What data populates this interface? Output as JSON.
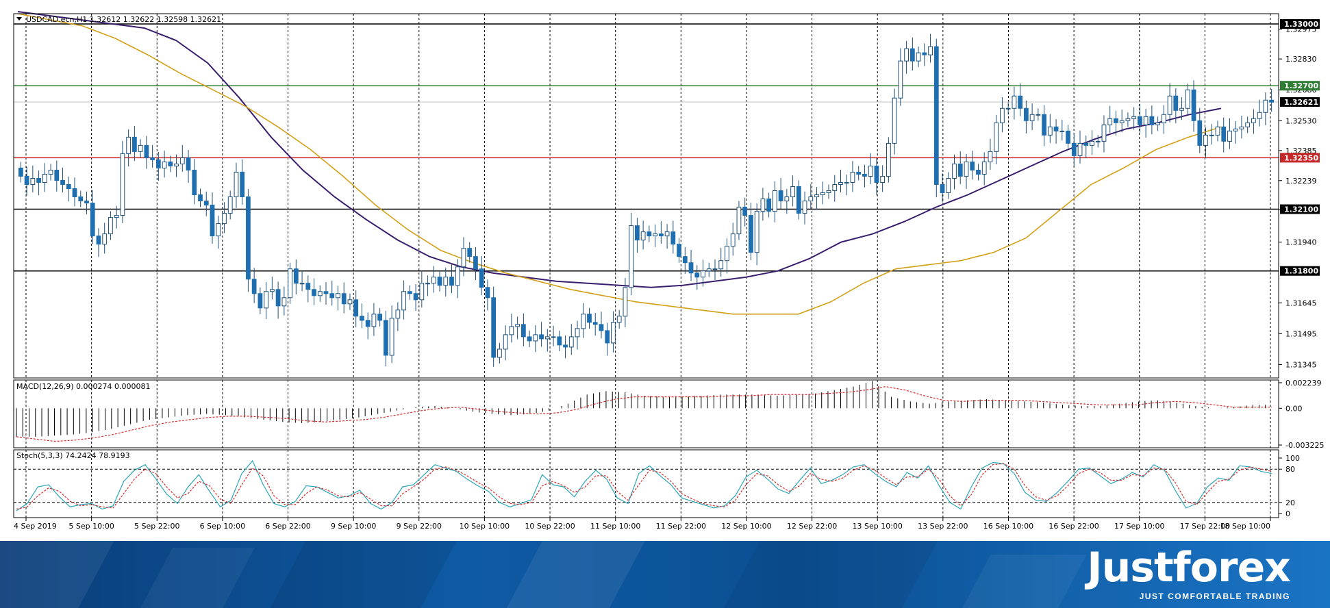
{
  "window": {
    "symbol_header": "USDCAD.ecn,H1  1.32612 1.32622 1.32598 1.32621"
  },
  "colors": {
    "bull_candle": "#1f6fb0",
    "bear_candle": "#1f6fb0",
    "ma_fast": "#d4a017",
    "ma_slow": "#3a1e6e",
    "level_black": "#000000",
    "level_green": "#2e7d32",
    "level_red": "#c62828",
    "bid_line": "#c0c0c0",
    "grid": "#000000",
    "brand_bg": "#0e5aa4"
  },
  "chart_data": [
    {
      "type": "candlestick",
      "title": "USDCAD.ecn,H1",
      "last_quote": {
        "open": 1.32612,
        "high": 1.32622,
        "low": 1.32598,
        "close": 1.32621
      },
      "x_tick_labels": [
        "4 Sep 2019",
        "5 Sep 10:00",
        "5 Sep 22:00",
        "6 Sep 10:00",
        "6 Sep 22:00",
        "9 Sep 10:00",
        "9 Sep 22:00",
        "10 Sep 10:00",
        "10 Sep 22:00",
        "11 Sep 10:00",
        "11 Sep 22:00",
        "12 Sep 10:00",
        "12 Sep 22:00",
        "13 Sep 10:00",
        "13 Sep 22:00",
        "16 Sep 10:00",
        "16 Sep 22:00",
        "17 Sep 10:00",
        "17 Sep 22:00",
        "18 Sep 10:00"
      ],
      "y_tick_labels": [
        "1.32975",
        "1.32830",
        "1.32680",
        "1.32530",
        "1.32385",
        "1.32239",
        "1.32100",
        "1.31940",
        "1.31645",
        "1.31495",
        "1.31345"
      ],
      "ylim": [
        1.3128,
        1.3305
      ],
      "grid": true,
      "price_levels": [
        {
          "label": "1.33000",
          "value": 1.33,
          "kind": "black"
        },
        {
          "label": "1.32700",
          "value": 1.327,
          "kind": "green"
        },
        {
          "label": "1.32621",
          "value": 1.32621,
          "kind": "bid"
        },
        {
          "label": "1.32350",
          "value": 1.3235,
          "kind": "red"
        },
        {
          "label": "1.32100",
          "value": 1.321,
          "kind": "black"
        },
        {
          "label": "1.31800",
          "value": 1.318,
          "kind": "black"
        }
      ],
      "close_path": [
        1.3226,
        1.3222,
        1.3225,
        1.3223,
        1.3227,
        1.3229,
        1.3224,
        1.3222,
        1.322,
        1.3216,
        1.3214,
        1.3213,
        1.3197,
        1.3193,
        1.3198,
        1.3206,
        1.3207,
        1.3237,
        1.3245,
        1.3238,
        1.3241,
        1.3235,
        1.3234,
        1.323,
        1.3233,
        1.3231,
        1.3232,
        1.3235,
        1.3229,
        1.3217,
        1.3214,
        1.3212,
        1.3197,
        1.3203,
        1.3208,
        1.3216,
        1.3228,
        1.3216,
        1.3176,
        1.3169,
        1.3162,
        1.317,
        1.3171,
        1.3163,
        1.3167,
        1.3181,
        1.3174,
        1.3174,
        1.3171,
        1.3168,
        1.317,
        1.3169,
        1.3167,
        1.3169,
        1.3164,
        1.3166,
        1.3158,
        1.3156,
        1.3153,
        1.3159,
        1.3156,
        1.3139,
        1.3157,
        1.3161,
        1.317,
        1.3169,
        1.3166,
        1.3174,
        1.3174,
        1.3177,
        1.3173,
        1.3177,
        1.3173,
        1.3182,
        1.3191,
        1.3187,
        1.3181,
        1.3172,
        1.3167,
        1.3138,
        1.3142,
        1.3149,
        1.3153,
        1.3154,
        1.3148,
        1.3146,
        1.3149,
        1.3147,
        1.3148,
        1.3148,
        1.3144,
        1.3143,
        1.3148,
        1.3152,
        1.3159,
        1.3155,
        1.3154,
        1.3151,
        1.3145,
        1.3155,
        1.3158,
        1.3172,
        1.3202,
        1.3195,
        1.3199,
        1.3197,
        1.3198,
        1.3197,
        1.3199,
        1.3193,
        1.3187,
        1.3184,
        1.3179,
        1.3177,
        1.318,
        1.3181,
        1.3181,
        1.3185,
        1.3192,
        1.3198,
        1.3211,
        1.3207,
        1.3189,
        1.3209,
        1.3215,
        1.3209,
        1.3219,
        1.3214,
        1.3216,
        1.3221,
        1.3208,
        1.3214,
        1.3216,
        1.3217,
        1.3218,
        1.3219,
        1.3222,
        1.3223,
        1.3223,
        1.3228,
        1.3227,
        1.3226,
        1.3231,
        1.3223,
        1.3226,
        1.3242,
        1.3264,
        1.3282,
        1.3288,
        1.3282,
        1.3286,
        1.3285,
        1.3289,
        1.3222,
        1.3218,
        1.3225,
        1.3232,
        1.3226,
        1.3233,
        1.3229,
        1.3227,
        1.3233,
        1.3238,
        1.3252,
        1.3259,
        1.3259,
        1.3265,
        1.3259,
        1.3253,
        1.3256,
        1.3256,
        1.3246,
        1.325,
        1.3248,
        1.3248,
        1.3242,
        1.3236,
        1.3242,
        1.3241,
        1.3243,
        1.3243,
        1.3251,
        1.3254,
        1.3252,
        1.3253,
        1.3254,
        1.3255,
        1.3251,
        1.3255,
        1.3251,
        1.3252,
        1.3256,
        1.3265,
        1.3258,
        1.3259,
        1.3268,
        1.3253,
        1.3241,
        1.3246,
        1.3246,
        1.325,
        1.3243,
        1.3248,
        1.3249,
        1.325,
        1.3252,
        1.3254,
        1.3257,
        1.3263,
        1.3262
      ],
      "ma_fast_path": [
        1.3305,
        1.3302,
        1.3299,
        1.3293,
        1.3285,
        1.3276,
        1.3268,
        1.326,
        1.325,
        1.3239,
        1.3226,
        1.3212,
        1.32,
        1.319,
        1.3184,
        1.3179,
        1.3175,
        1.3171,
        1.3168,
        1.3165,
        1.3163,
        1.3161,
        1.3159,
        1.3159,
        1.3159,
        1.3165,
        1.3174,
        1.3181,
        1.3183,
        1.3185,
        1.3189,
        1.3196,
        1.3209,
        1.3222,
        1.323,
        1.3239,
        1.3245,
        1.325
      ],
      "ma_slow_path": [
        1.3306,
        1.3304,
        1.3302,
        1.33,
        1.3298,
        1.3292,
        1.3281,
        1.3264,
        1.3245,
        1.3229,
        1.3216,
        1.3205,
        1.3195,
        1.3187,
        1.3182,
        1.3179,
        1.3177,
        1.3175,
        1.3174,
        1.3173,
        1.3172,
        1.3173,
        1.3175,
        1.3177,
        1.318,
        1.3186,
        1.3194,
        1.3198,
        1.3204,
        1.3211,
        1.3217,
        1.3224,
        1.3231,
        1.3238,
        1.3244,
        1.3249,
        1.3252,
        1.3256,
        1.3259
      ]
    },
    {
      "type": "histogram",
      "title": "MACD(12,26,9) 0.000274 0.000081",
      "y_tick_labels": [
        "0.002239",
        "0.00",
        "-0.003225"
      ],
      "ylim": [
        -0.003225,
        0.002239
      ],
      "macd_main": [
        -0.0025,
        -0.0025,
        -0.0024,
        -0.0023,
        -0.0021,
        -0.0018,
        -0.0014,
        -0.001,
        -0.0008,
        -0.0006,
        -0.0005,
        -0.0006,
        -0.0008,
        -0.001,
        -0.0012,
        -0.0013,
        -0.0012,
        -0.001,
        -0.0008,
        -0.0005,
        -0.0002,
        0.0001,
        0.0002,
        0.0,
        -0.0003,
        -0.0005,
        -0.0006,
        -0.0005,
        -0.0002,
        0.0004,
        0.0012,
        0.0015,
        0.0014,
        0.0011,
        0.001,
        0.001,
        0.0011,
        0.0012,
        0.0012,
        0.0012,
        0.0011,
        0.0012,
        0.0013,
        0.0016,
        0.0019,
        0.0024,
        0.001,
        0.0006,
        0.0004,
        0.0006,
        0.0007,
        0.0008,
        0.0007,
        0.0006,
        0.0005,
        0.0003,
        0.0002,
        0.0002,
        0.0004,
        0.0006,
        0.0007,
        0.0005,
        0.0002,
        0.0,
        0.0001,
        0.0003
      ],
      "macd_signal": [
        -0.0025,
        -0.0027,
        -0.0029,
        -0.0028,
        -0.0026,
        -0.0023,
        -0.0019,
        -0.0015,
        -0.0012,
        -0.001,
        -0.0008,
        -0.0007,
        -0.0007,
        -0.0008,
        -0.0009,
        -0.0011,
        -0.0012,
        -0.0011,
        -0.001,
        -0.0008,
        -0.0005,
        -0.0002,
        0.0,
        0.0001,
        -0.0001,
        -0.0003,
        -0.0004,
        -0.0005,
        -0.0004,
        -0.0001,
        0.0004,
        0.0008,
        0.001,
        0.001,
        0.001,
        0.001,
        0.001,
        0.0011,
        0.0011,
        0.0012,
        0.0012,
        0.0012,
        0.0013,
        0.0014,
        0.0016,
        0.0019,
        0.0016,
        0.0011,
        0.0007,
        0.0006,
        0.0007,
        0.0007,
        0.0007,
        0.0006,
        0.0005,
        0.0004,
        0.0003,
        0.0003,
        0.0003,
        0.0005,
        0.0006,
        0.0005,
        0.0003,
        0.0001,
        0.0001,
        0.0001
      ]
    },
    {
      "type": "line",
      "title": "Stoch(5,3,3) 74.2424 78.9193",
      "y_tick_labels": [
        "100",
        "80",
        "20",
        "0"
      ],
      "ylim": [
        0,
        100
      ],
      "levels": [
        80,
        20
      ],
      "stoch_main": [
        5,
        18,
        48,
        52,
        30,
        12,
        16,
        18,
        8,
        14,
        58,
        78,
        88,
        62,
        35,
        18,
        48,
        70,
        40,
        12,
        24,
        72,
        95,
        52,
        18,
        12,
        22,
        50,
        48,
        38,
        28,
        32,
        42,
        18,
        8,
        20,
        48,
        52,
        70,
        88,
        82,
        76,
        62,
        50,
        40,
        20,
        12,
        18,
        25,
        70,
        52,
        48,
        30,
        58,
        78,
        62,
        28,
        18,
        72,
        86,
        68,
        52,
        28,
        22,
        16,
        10,
        14,
        32,
        66,
        78,
        62,
        44,
        36,
        60,
        82,
        54,
        60,
        70,
        84,
        88,
        72,
        58,
        48,
        74,
        64,
        86,
        50,
        20,
        8,
        48,
        82,
        92,
        90,
        72,
        38,
        24,
        22,
        38,
        58,
        80,
        82,
        68,
        54,
        62,
        74,
        66,
        88,
        78,
        42,
        10,
        18,
        48,
        64,
        60,
        86,
        84,
        76,
        72
      ],
      "stoch_signal": [
        8,
        12,
        32,
        46,
        40,
        22,
        14,
        16,
        12,
        10,
        36,
        62,
        80,
        72,
        48,
        28,
        36,
        58,
        50,
        26,
        18,
        52,
        82,
        68,
        32,
        16,
        16,
        36,
        48,
        42,
        32,
        30,
        38,
        26,
        14,
        14,
        36,
        48,
        62,
        80,
        84,
        78,
        68,
        56,
        46,
        30,
        18,
        16,
        20,
        50,
        58,
        50,
        38,
        48,
        68,
        68,
        40,
        24,
        52,
        78,
        74,
        58,
        36,
        26,
        18,
        14,
        12,
        24,
        52,
        72,
        68,
        52,
        40,
        50,
        72,
        62,
        58,
        64,
        78,
        86,
        78,
        64,
        52,
        66,
        66,
        80,
        62,
        32,
        14,
        34,
        70,
        88,
        90,
        80,
        50,
        30,
        24,
        32,
        50,
        72,
        80,
        74,
        60,
        60,
        70,
        68,
        82,
        80,
        56,
        22,
        16,
        38,
        58,
        62,
        78,
        84,
        80,
        76
      ]
    }
  ],
  "brand": {
    "name": "Justforex",
    "tagline": "JUST COMFORTABLE TRADING"
  }
}
